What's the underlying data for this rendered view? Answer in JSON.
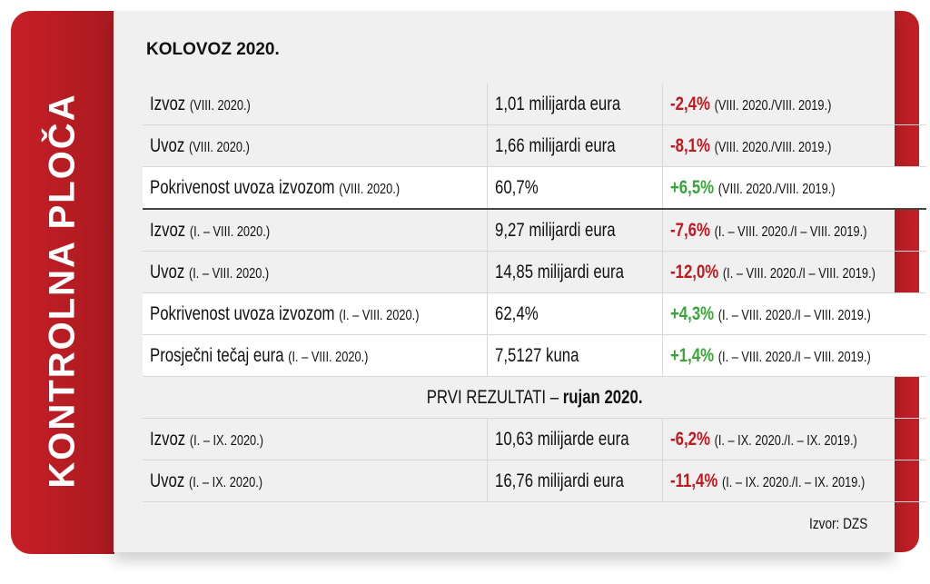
{
  "side_title": "KONTROLNA PLOČA",
  "heading": "KOLOVOZ 2020.",
  "rows": [
    {
      "label": "Izvoz",
      "period": "(VIII. 2020.)",
      "value": "1,01 milijarda eura",
      "change": "-2,4%",
      "compare": "(VIII. 2020./VIII. 2019.)",
      "trend": "neg",
      "bg": "gray"
    },
    {
      "label": "Uvoz",
      "period": "(VIII. 2020.)",
      "value": "1,66 milijardi eura",
      "change": "-8,1%",
      "compare": "(VIII. 2020./VIII. 2019.)",
      "trend": "neg",
      "bg": "gray"
    },
    {
      "label": "Pokrivenost uvoza izvozom",
      "period": "(VIII. 2020.)",
      "value": "60,7%",
      "change": "+6,5%",
      "compare": "(VIII. 2020./VIII. 2019.)",
      "trend": "pos",
      "bg": "white"
    },
    {
      "label": "Izvoz",
      "period": "(I. – VIII. 2020.)",
      "value": "9,27 milijardi eura",
      "change": "-7,6%",
      "compare": "(I. – VIII. 2020./I – VIII. 2019.)",
      "trend": "neg",
      "bg": "gray"
    },
    {
      "label": "Uvoz",
      "period": "(I. – VIII. 2020.)",
      "value": "14,85 milijardi eura",
      "change": "-12,0%",
      "compare": "(I. – VIII. 2020./I – VIII. 2019.)",
      "trend": "neg",
      "bg": "gray"
    },
    {
      "label": "Pokrivenost uvoza izvozom",
      "period": "(I. – VIII. 2020.)",
      "value": "62,4%",
      "change": "+4,3%",
      "compare": "(I. – VIII. 2020./I – VIII. 2019.)",
      "trend": "pos",
      "bg": "white"
    },
    {
      "label": "Prosječni tečaj eura",
      "period": "(I. – VIII. 2020.)",
      "value": "7,5127 kuna",
      "change": "+1,4%",
      "compare": "(I. – VIII. 2020./I – VIII. 2019.)",
      "trend": "pos",
      "bg": "white"
    }
  ],
  "section2": {
    "title": "PRVI REZULTATI",
    "dash": " – ",
    "sub": "rujan 2020."
  },
  "rows2": [
    {
      "label": "Izvoz",
      "period": "(I. – IX. 2020.)",
      "value": "10,63 milijarde eura",
      "change": "-6,2%",
      "compare": "(I. – IX. 2020./I. – IX. 2019.)",
      "trend": "neg"
    },
    {
      "label": "Uvoz",
      "period": "(I. – IX. 2020.)",
      "value": "16,76 milijardi eura",
      "change": "-11,4%",
      "compare": "(I. – IX. 2020./I. – IX. 2019.)",
      "trend": "neg"
    }
  ],
  "source": "Izvor: DZS",
  "colors": {
    "brand_red": "#c81f27",
    "negative": "#c0191f",
    "positive": "#3aa53a"
  }
}
